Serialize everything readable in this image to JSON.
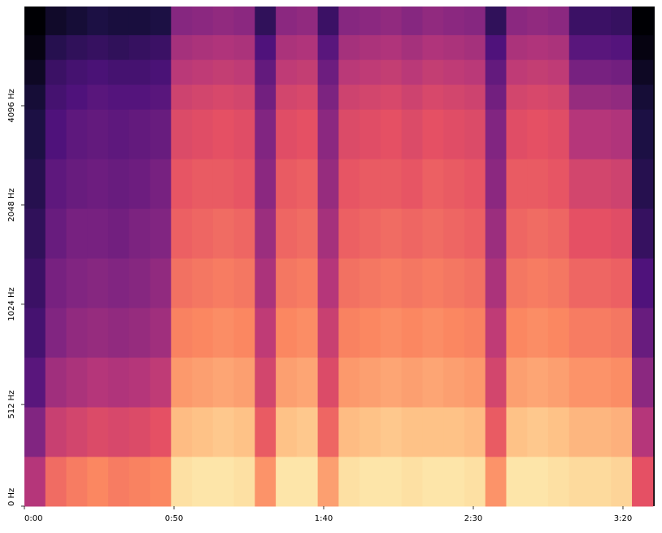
{
  "chart_data": {
    "type": "spectrogram",
    "yscale": "symlog",
    "linthresh": 1000,
    "linbase": 2,
    "xlim": [
      0,
      210.6
    ],
    "ylim": [
      0,
      8192
    ],
    "xticks": [
      {
        "value": 0,
        "label": "0:00"
      },
      {
        "value": 50,
        "label": "0:50"
      },
      {
        "value": 100,
        "label": "1:40"
      },
      {
        "value": 150,
        "label": "2:30"
      },
      {
        "value": 200,
        "label": "3:20"
      }
    ],
    "yticks": [
      {
        "value": 0,
        "label": "0 Hz"
      },
      {
        "value": 512,
        "label": "512 Hz"
      },
      {
        "value": 1024,
        "label": "1024 Hz"
      },
      {
        "value": 2048,
        "label": "2048 Hz"
      },
      {
        "value": 4096,
        "label": "4096 Hz"
      }
    ],
    "colormap": "magma",
    "zlim": [
      -80,
      0
    ],
    "xbins": [
      0,
      7,
      14,
      21,
      28,
      35,
      42,
      49,
      56,
      63,
      70,
      77,
      84,
      91,
      98,
      105,
      112,
      119,
      126,
      133,
      140,
      147,
      154,
      161,
      168,
      175,
      182,
      189,
      196,
      203,
      210
    ],
    "ybins": [
      0,
      250,
      500,
      750,
      1000,
      1414,
      2000,
      2828,
      4000,
      4757,
      5657,
      6727,
      8192
    ],
    "z": [
      [
        -40,
        -50,
        -58,
        -62,
        -64,
        -66,
        -68,
        -70,
        -72,
        -75,
        -78,
        -80
      ],
      [
        -25,
        -36,
        -44,
        -50,
        -52,
        -55,
        -57,
        -60,
        -62,
        -64,
        -68,
        -74
      ],
      [
        -22,
        -34,
        -42,
        -47,
        -50,
        -52,
        -55,
        -57,
        -60,
        -62,
        -66,
        -72
      ],
      [
        -20,
        -32,
        -40,
        -46,
        -49,
        -52,
        -54,
        -56,
        -58,
        -61,
        -65,
        -70
      ],
      [
        -22,
        -33,
        -41,
        -47,
        -50,
        -53,
        -55,
        -57,
        -59,
        -62,
        -66,
        -71
      ],
      [
        -21,
        -32,
        -40,
        -46,
        -49,
        -51,
        -54,
        -56,
        -59,
        -62,
        -65,
        -71
      ],
      [
        -20,
        -30,
        -38,
        -44,
        -47,
        -50,
        -52,
        -55,
        -58,
        -61,
        -64,
        -70
      ],
      [
        -5,
        -11,
        -17,
        -21,
        -24,
        -27,
        -29,
        -32,
        -35,
        -39,
        -43,
        -49
      ],
      [
        -4,
        -10,
        -16,
        -20,
        -23,
        -26,
        -28,
        -31,
        -34,
        -38,
        -42,
        -48
      ],
      [
        -4,
        -9,
        -15,
        -19,
        -22,
        -25,
        -28,
        -30,
        -33,
        -37,
        -41,
        -47
      ],
      [
        -5,
        -10,
        -16,
        -20,
        -23,
        -26,
        -29,
        -31,
        -34,
        -38,
        -42,
        -48
      ],
      [
        -18,
        -28,
        -34,
        -38,
        -42,
        -45,
        -48,
        -50,
        -53,
        -56,
        -60,
        -66
      ],
      [
        -4,
        -10,
        -16,
        -20,
        -23,
        -26,
        -28,
        -31,
        -34,
        -38,
        -42,
        -48
      ],
      [
        -4,
        -9,
        -15,
        -19,
        -22,
        -25,
        -27,
        -30,
        -33,
        -37,
        -41,
        -47
      ],
      [
        -16,
        -26,
        -32,
        -36,
        -40,
        -43,
        -46,
        -48,
        -51,
        -54,
        -58,
        -64
      ],
      [
        -5,
        -11,
        -17,
        -21,
        -24,
        -27,
        -29,
        -32,
        -35,
        -39,
        -43,
        -49
      ],
      [
        -4,
        -10,
        -16,
        -20,
        -23,
        -26,
        -28,
        -31,
        -34,
        -38,
        -42,
        -48
      ],
      [
        -4,
        -9,
        -15,
        -19,
        -22,
        -25,
        -28,
        -30,
        -33,
        -37,
        -41,
        -47
      ],
      [
        -5,
        -10,
        -16,
        -20,
        -23,
        -26,
        -29,
        -32,
        -35,
        -39,
        -43,
        -49
      ],
      [
        -4,
        -10,
        -15,
        -19,
        -22,
        -25,
        -27,
        -30,
        -33,
        -37,
        -41,
        -47
      ],
      [
        -4,
        -10,
        -16,
        -20,
        -23,
        -26,
        -28,
        -31,
        -34,
        -38,
        -42,
        -48
      ],
      [
        -5,
        -11,
        -17,
        -21,
        -24,
        -27,
        -29,
        -32,
        -35,
        -39,
        -43,
        -49
      ],
      [
        -18,
        -28,
        -34,
        -38,
        -42,
        -45,
        -48,
        -50,
        -53,
        -56,
        -60,
        -66
      ],
      [
        -4,
        -10,
        -16,
        -20,
        -23,
        -26,
        -28,
        -31,
        -34,
        -38,
        -42,
        -48
      ],
      [
        -4,
        -9,
        -15,
        -19,
        -22,
        -25,
        -28,
        -30,
        -33,
        -37,
        -41,
        -47
      ],
      [
        -5,
        -10,
        -16,
        -20,
        -23,
        -26,
        -29,
        -31,
        -34,
        -38,
        -42,
        -48
      ],
      [
        -6,
        -12,
        -18,
        -22,
        -26,
        -30,
        -34,
        -40,
        -46,
        -52,
        -58,
        -64
      ],
      [
        -6,
        -12,
        -18,
        -22,
        -26,
        -30,
        -34,
        -40,
        -46,
        -52,
        -58,
        -64
      ],
      [
        -7,
        -13,
        -19,
        -23,
        -27,
        -31,
        -35,
        -41,
        -47,
        -53,
        -59,
        -65
      ],
      [
        -30,
        -40,
        -48,
        -55,
        -60,
        -65,
        -68,
        -70,
        -72,
        -75,
        -78,
        -80
      ]
    ]
  }
}
